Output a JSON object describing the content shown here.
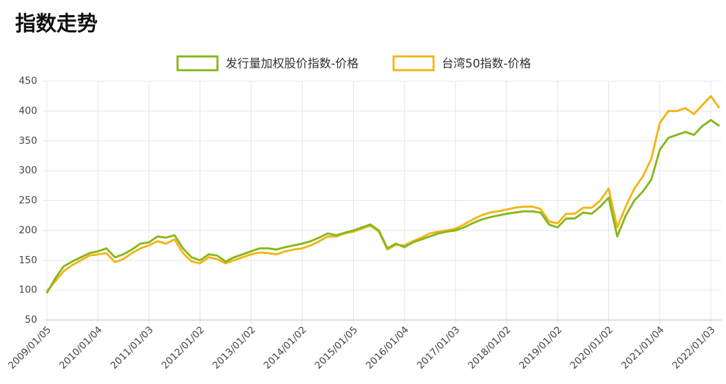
{
  "chart_data": {
    "type": "line",
    "title": "指数走势",
    "categories": [
      "2009/01/05",
      null,
      null,
      null,
      null,
      null,
      "2010/01/04",
      null,
      null,
      null,
      null,
      null,
      "2011/01/03",
      null,
      null,
      null,
      null,
      null,
      "2012/01/02",
      null,
      null,
      null,
      null,
      null,
      "2013/01/02",
      null,
      null,
      null,
      null,
      null,
      "2014/01/02",
      null,
      null,
      null,
      null,
      null,
      "2015/01/05",
      null,
      null,
      null,
      null,
      null,
      "2016/01/04",
      null,
      null,
      null,
      null,
      null,
      "2017/01/03",
      null,
      null,
      null,
      null,
      null,
      "2018/01/02",
      null,
      null,
      null,
      null,
      null,
      "2019/01/02",
      null,
      null,
      null,
      null,
      null,
      "2020/01/02",
      null,
      null,
      null,
      null,
      null,
      "2021/01/04",
      null,
      null,
      null,
      null,
      null,
      "2022/01/03",
      null
    ],
    "series": [
      {
        "name": "发行量加权股价指数-价格",
        "color": "#86b81c",
        "values": [
          95,
          120,
          140,
          148,
          155,
          162,
          165,
          170,
          155,
          160,
          168,
          178,
          180,
          190,
          188,
          192,
          170,
          155,
          150,
          160,
          158,
          148,
          155,
          160,
          165,
          170,
          170,
          168,
          172,
          175,
          178,
          182,
          188,
          195,
          192,
          196,
          200,
          205,
          210,
          200,
          170,
          178,
          172,
          180,
          185,
          190,
          195,
          198,
          200,
          205,
          212,
          218,
          222,
          225,
          228,
          230,
          232,
          232,
          230,
          210,
          205,
          220,
          220,
          230,
          228,
          240,
          255,
          190,
          225,
          250,
          265,
          285,
          335,
          355,
          360,
          365,
          360,
          375,
          385,
          375
        ]
      },
      {
        "name": "台湾50指数-价格",
        "color": "#f5b417",
        "values": [
          98,
          115,
          132,
          142,
          150,
          158,
          160,
          162,
          147,
          152,
          162,
          170,
          175,
          182,
          178,
          185,
          162,
          148,
          145,
          155,
          152,
          145,
          150,
          155,
          160,
          163,
          162,
          160,
          165,
          168,
          170,
          175,
          182,
          190,
          190,
          195,
          198,
          203,
          208,
          198,
          168,
          176,
          175,
          182,
          188,
          195,
          198,
          200,
          203,
          210,
          218,
          225,
          230,
          232,
          235,
          238,
          240,
          240,
          236,
          215,
          212,
          228,
          228,
          238,
          238,
          250,
          270,
          205,
          240,
          270,
          290,
          320,
          380,
          400,
          400,
          405,
          395,
          410,
          425,
          405
        ]
      }
    ],
    "ylim": [
      50,
      450
    ],
    "yticks": [
      50,
      100,
      150,
      200,
      250,
      300,
      350,
      400,
      450
    ],
    "grid": true
  }
}
